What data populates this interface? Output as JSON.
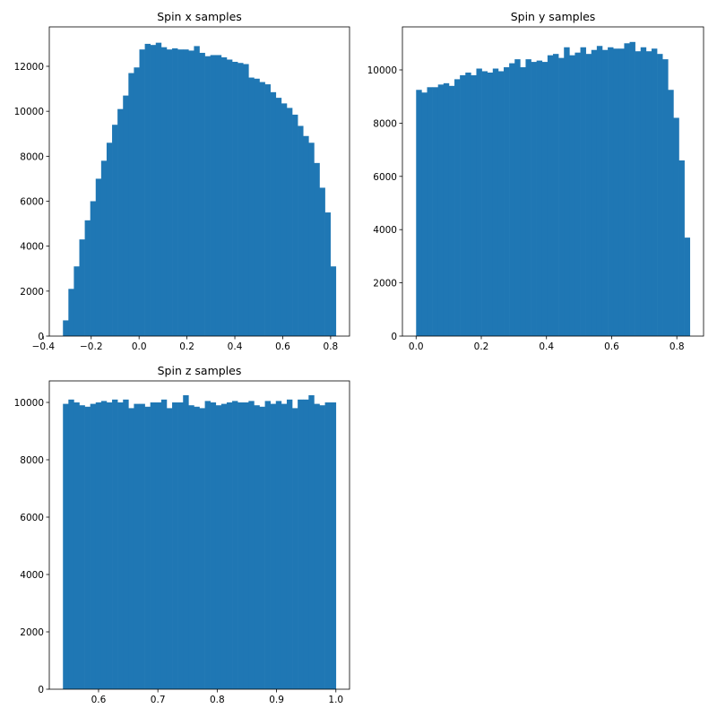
{
  "chart_data": [
    {
      "type": "histogram",
      "title": "Spin x samples",
      "color": "#1f77b4",
      "bins": [
        -0.318,
        -0.2952,
        -0.2724,
        -0.2496,
        -0.2268,
        -0.204,
        -0.1812,
        -0.1584,
        -0.1356,
        -0.1128,
        -0.09,
        -0.0672,
        -0.0444,
        -0.0216,
        0.0012,
        0.024,
        0.0468,
        0.0696,
        0.0924,
        0.1152,
        0.138,
        0.1608,
        0.1836,
        0.2064,
        0.2292,
        0.252,
        0.2748,
        0.2976,
        0.3204,
        0.3432,
        0.366,
        0.3888,
        0.4116,
        0.4344,
        0.4572,
        0.48,
        0.5028,
        0.5256,
        0.5484,
        0.5712,
        0.594,
        0.6168,
        0.6396,
        0.6624,
        0.6852,
        0.708,
        0.7308,
        0.7536,
        0.7764,
        0.7992,
        0.822
      ],
      "values": [
        700,
        2100,
        3100,
        4300,
        5150,
        6000,
        7000,
        7800,
        8600,
        9400,
        10100,
        10700,
        11700,
        11950,
        12750,
        13000,
        12950,
        13050,
        12850,
        12750,
        12800,
        12750,
        12750,
        12700,
        12900,
        12600,
        12450,
        12500,
        12500,
        12400,
        12300,
        12200,
        12150,
        12100,
        11500,
        11450,
        11300,
        11200,
        10850,
        10600,
        10350,
        10150,
        9850,
        9350,
        8900,
        8600,
        7700,
        6600,
        5500,
        3100
      ],
      "xlim": [
        -0.375,
        0.879
      ],
      "ylim": [
        0,
        13754
      ],
      "xticks": [
        {
          "value": -0.4,
          "label": "−0.4"
        },
        {
          "value": -0.2,
          "label": "−0.2"
        },
        {
          "value": 0.0,
          "label": "0.0"
        },
        0.2,
        0.4,
        0.6,
        0.8
      ],
      "yticks": [
        0,
        2000,
        4000,
        6000,
        8000,
        10000,
        12000
      ]
    },
    {
      "type": "histogram",
      "title": "Spin y samples",
      "color": "#1f77b4",
      "bins": [
        0,
        0.0168,
        0.0336,
        0.0504,
        0.0672,
        0.084,
        0.1008,
        0.1176,
        0.1344,
        0.1512,
        0.168,
        0.1848,
        0.2016,
        0.2184,
        0.2352,
        0.252,
        0.2688,
        0.2856,
        0.3024,
        0.3192,
        0.336,
        0.3528,
        0.3696,
        0.3864,
        0.4032,
        0.42,
        0.4368,
        0.4536,
        0.4704,
        0.4872,
        0.504,
        0.5208,
        0.5376,
        0.5544,
        0.5712,
        0.588,
        0.6048,
        0.6216,
        0.6384,
        0.6552,
        0.672,
        0.6888,
        0.7056,
        0.7224,
        0.7392,
        0.756,
        0.7728,
        0.7896,
        0.8064,
        0.8232,
        0.84
      ],
      "values": [
        9250,
        9150,
        9350,
        9350,
        9450,
        9500,
        9400,
        9650,
        9800,
        9900,
        9800,
        10050,
        9950,
        9900,
        10050,
        9950,
        10100,
        10250,
        10400,
        10100,
        10400,
        10300,
        10350,
        10300,
        10550,
        10600,
        10450,
        10850,
        10550,
        10650,
        10850,
        10600,
        10750,
        10900,
        10750,
        10850,
        10800,
        10800,
        11000,
        11050,
        10700,
        10850,
        10700,
        10800,
        10600,
        10400,
        9250,
        8200,
        6600,
        3700
      ],
      "xlim": [
        -0.042,
        0.882
      ],
      "ylim": [
        0,
        11616
      ],
      "xticks": [
        {
          "value": 0.0,
          "label": "0.0"
        },
        0.2,
        0.4,
        0.6,
        0.8
      ],
      "yticks": [
        0,
        2000,
        4000,
        6000,
        8000,
        10000
      ]
    },
    {
      "type": "histogram",
      "title": "Spin z samples",
      "color": "#1f77b4",
      "bins": [
        0.54,
        0.5492,
        0.5584,
        0.5676,
        0.5768,
        0.586,
        0.5952,
        0.6044,
        0.6136,
        0.6228,
        0.632,
        0.6412,
        0.6504,
        0.6596,
        0.6688,
        0.678,
        0.6872,
        0.6964,
        0.7056,
        0.7148,
        0.724,
        0.7332,
        0.7424,
        0.7516,
        0.7608,
        0.77,
        0.7792,
        0.7884,
        0.7976,
        0.8068,
        0.816,
        0.8252,
        0.8344,
        0.8436,
        0.8528,
        0.862,
        0.8712,
        0.8804,
        0.8896,
        0.8988,
        0.908,
        0.9172,
        0.9264,
        0.9356,
        0.9448,
        0.954,
        0.9632,
        0.9724,
        0.9816,
        0.9908,
        1.0
      ],
      "values": [
        9950,
        10100,
        10000,
        9900,
        9850,
        9950,
        10000,
        10050,
        10000,
        10100,
        10000,
        10100,
        9800,
        9950,
        9950,
        9850,
        10000,
        10000,
        10100,
        9800,
        10000,
        10000,
        10250,
        9900,
        9850,
        9800,
        10050,
        10000,
        9900,
        9950,
        10000,
        10050,
        10000,
        10000,
        10050,
        9900,
        9850,
        10050,
        9950,
        10050,
        9950,
        10100,
        9800,
        10100,
        10100,
        10250,
        9950,
        9900,
        10000,
        10000
      ],
      "xlim": [
        0.517,
        1.023
      ],
      "ylim": [
        0,
        10750
      ],
      "xticks": [
        0.6,
        0.7,
        0.8,
        0.9,
        {
          "value": 1.0,
          "label": "1.0"
        }
      ],
      "yticks": [
        0,
        2000,
        4000,
        6000,
        8000,
        10000
      ]
    }
  ]
}
